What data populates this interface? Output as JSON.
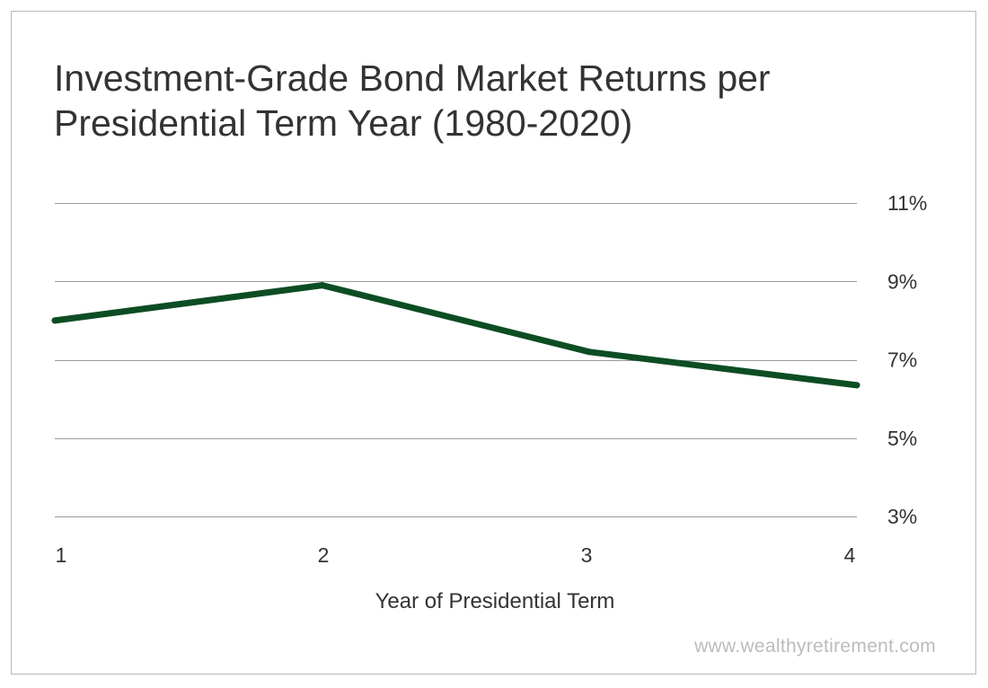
{
  "title_lines": [
    "Investment-Grade Bond Market Returns per",
    "Presidential Term Year (1980-2020)"
  ],
  "watermark": "www.wealthyretirement.com",
  "chart_data": {
    "type": "line",
    "title": "Investment-Grade Bond Market Returns per Presidential Term Year (1980-2020)",
    "xlabel": "Year of Presidential Term",
    "ylabel": "",
    "x": [
      1,
      2,
      3,
      4
    ],
    "x_tick_labels": [
      "1",
      "2",
      "3",
      "4"
    ],
    "y_ticks": [
      3,
      5,
      7,
      9,
      11
    ],
    "y_tick_labels": [
      "3%",
      "5%",
      "7%",
      "9%",
      "11%"
    ],
    "ylim": [
      3,
      11
    ],
    "y_axis_side": "right",
    "grid": true,
    "legend": "none",
    "series": [
      {
        "values": [
          8.0,
          8.9,
          7.2,
          6.35
        ]
      }
    ],
    "colors": {
      "line": "#0d4d23",
      "grid": "#9a9a9a",
      "tick_text": "#333333",
      "title_text": "#333333",
      "watermark_text": "#bcbcbc"
    }
  }
}
